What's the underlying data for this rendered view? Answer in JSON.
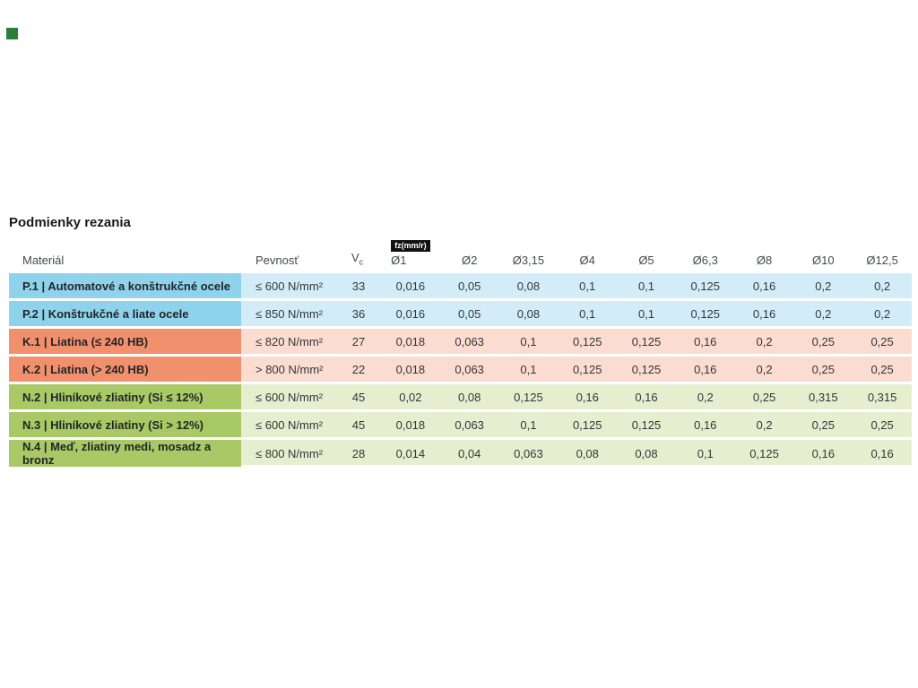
{
  "title": "Podmienky rezania",
  "corner_marker": {
    "color": "#2e7d39"
  },
  "table": {
    "headers": {
      "material": "Materiál",
      "strength": "Pevnosť",
      "vc_main": "V",
      "vc_sub": "c",
      "feed_unit_badge": "fz(mm/r)",
      "diameters": [
        "Ø1",
        "Ø2",
        "Ø3,15",
        "Ø4",
        "Ø5",
        "Ø6,3",
        "Ø8",
        "Ø10",
        "Ø12,5"
      ]
    },
    "rows": [
      {
        "group": "p",
        "label": "P.1 | Automatové a konštrukčné ocele",
        "strength": "≤ 600 N/mm²",
        "vc": "33",
        "values": [
          "0,016",
          "0,05",
          "0,08",
          "0,1",
          "0,1",
          "0,125",
          "0,16",
          "0,2",
          "0,2"
        ]
      },
      {
        "group": "p",
        "label": "P.2 | Konštrukčné a liate ocele",
        "strength": "≤ 850 N/mm²",
        "vc": "36",
        "values": [
          "0,016",
          "0,05",
          "0,08",
          "0,1",
          "0,1",
          "0,125",
          "0,16",
          "0,2",
          "0,2"
        ]
      },
      {
        "group": "k",
        "label": "K.1 | Liatina (≤ 240 HB)",
        "strength": "≤ 820 N/mm²",
        "vc": "27",
        "values": [
          "0,018",
          "0,063",
          "0,1",
          "0,125",
          "0,125",
          "0,16",
          "0,2",
          "0,25",
          "0,25"
        ]
      },
      {
        "group": "k",
        "label": "K.2 | Liatina (> 240 HB)",
        "strength": "> 800 N/mm²",
        "vc": "22",
        "values": [
          "0,018",
          "0,063",
          "0,1",
          "0,125",
          "0,125",
          "0,16",
          "0,2",
          "0,25",
          "0,25"
        ]
      },
      {
        "group": "n",
        "label": "N.2 | Hliníkové zliatiny (Si ≤ 12%)",
        "strength": "≤ 600 N/mm²",
        "vc": "45",
        "values": [
          "0,02",
          "0,08",
          "0,125",
          "0,16",
          "0,16",
          "0,2",
          "0,25",
          "0,315",
          "0,315"
        ]
      },
      {
        "group": "n",
        "label": "N.3 | Hliníkové zliatiny (Si > 12%)",
        "strength": "≤ 600 N/mm²",
        "vc": "45",
        "values": [
          "0,018",
          "0,063",
          "0,1",
          "0,125",
          "0,125",
          "0,16",
          "0,2",
          "0,25",
          "0,25"
        ]
      },
      {
        "group": "n",
        "label": "N.4 | Meď, zliatiny medi, mosadz a bronz",
        "strength": "≤ 800 N/mm²",
        "vc": "28",
        "values": [
          "0,014",
          "0,04",
          "0,063",
          "0,08",
          "0,08",
          "0,1",
          "0,125",
          "0,16",
          "0,16"
        ]
      }
    ]
  },
  "colors": {
    "corner_marker": "#2e7d39",
    "steel_label": "#8fd2ec",
    "steel_row": "#d3edf8",
    "cast_iron_label": "#f0906c",
    "cast_iron_row": "#fbdcd0",
    "nonferrous_label": "#a9c866",
    "nonferrous_row": "#e5eecf",
    "badge_bg": "#111111",
    "badge_text": "#ffffff"
  }
}
